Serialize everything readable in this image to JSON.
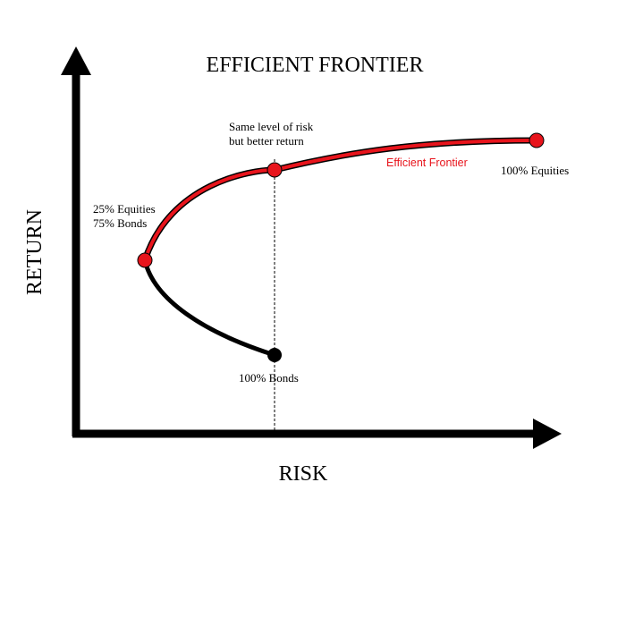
{
  "title": "EFFICIENT FRONTIER",
  "axes": {
    "y_label": "RETURN",
    "x_label": "RISK"
  },
  "annotations": {
    "same_risk_line1": "Same level of risk",
    "same_risk_line2": "but better return",
    "frontier_label": "Efficient Frontier",
    "equities_100": "100% Equities",
    "mix_line1": "25% Equities",
    "mix_line2": "75% Bonds",
    "bonds_100": "100% Bonds"
  },
  "colors": {
    "axis": "#000000",
    "frontier": "#e8141c",
    "inefficient_curve": "#000000",
    "frontier_label": "#e8141c",
    "guide_line": "#000000"
  },
  "points": [
    {
      "name": "100% Bonds",
      "color": "#000000"
    },
    {
      "name": "25% Equities / 75% Bonds",
      "color": "#e8141c"
    },
    {
      "name": "Same level of risk but better return",
      "color": "#e8141c"
    },
    {
      "name": "100% Equities",
      "color": "#e8141c"
    }
  ]
}
